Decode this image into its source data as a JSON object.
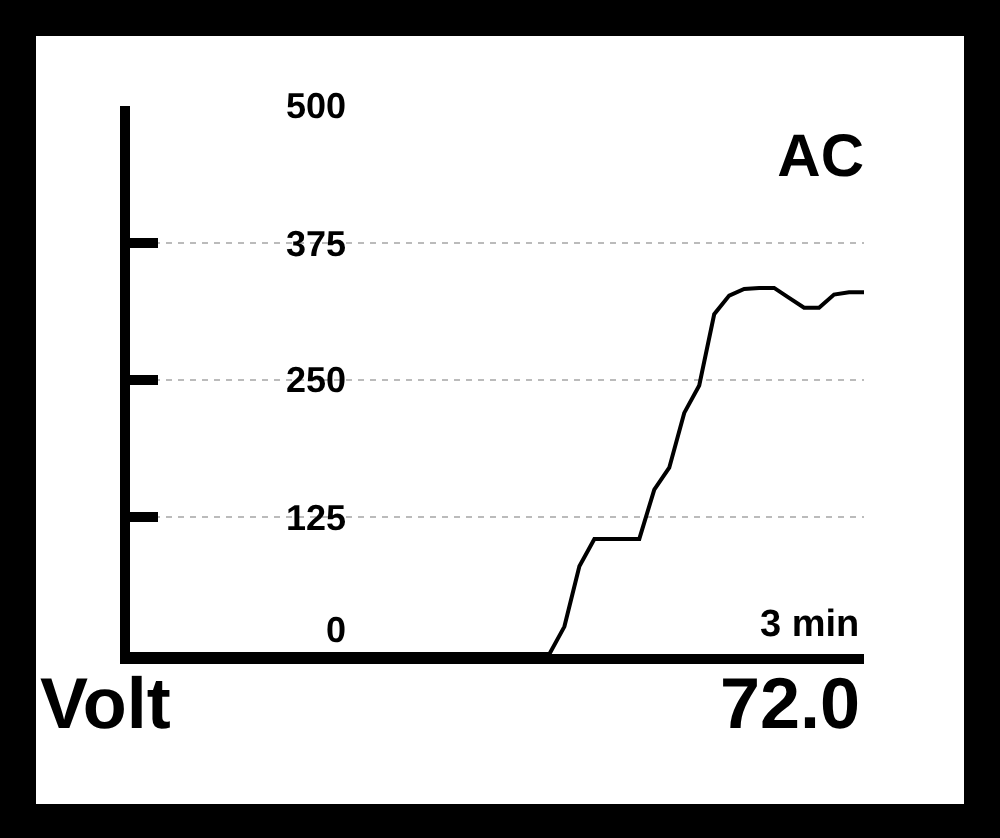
{
  "chart_data": {
    "type": "line",
    "title": "AC",
    "xlabel": "3 min",
    "ylabel": "Volt",
    "annotations": [
      "72.0"
    ],
    "categories": [
      null,
      null,
      null,
      null,
      null,
      null,
      null,
      null,
      null,
      null,
      null,
      null,
      null,
      null,
      null,
      null,
      null,
      null,
      null,
      null,
      null,
      null,
      null,
      null,
      null,
      null,
      null,
      null,
      null,
      null,
      null,
      null,
      null,
      null,
      null,
      null,
      null,
      null,
      null,
      null,
      null,
      null,
      null,
      null,
      null,
      null,
      null,
      null,
      null,
      null
    ],
    "series": [
      {
        "color": "#000000",
        "values": [
          0,
          0,
          0,
          0,
          0,
          0,
          0,
          0,
          0,
          0,
          0,
          0,
          0,
          0,
          0,
          0,
          0,
          0,
          0,
          0,
          0,
          0,
          0,
          0,
          0,
          0,
          0,
          0,
          0,
          25,
          80,
          105,
          105,
          105,
          105,
          150,
          170,
          220,
          245,
          310,
          327,
          333,
          334,
          334,
          325,
          316,
          316,
          328,
          330,
          330
        ]
      }
    ],
    "ylim": [
      0,
      500
    ],
    "yticks": [
      0,
      125,
      250,
      375,
      500
    ],
    "grid": "y",
    "line_style": "solid",
    "marker": "none"
  }
}
